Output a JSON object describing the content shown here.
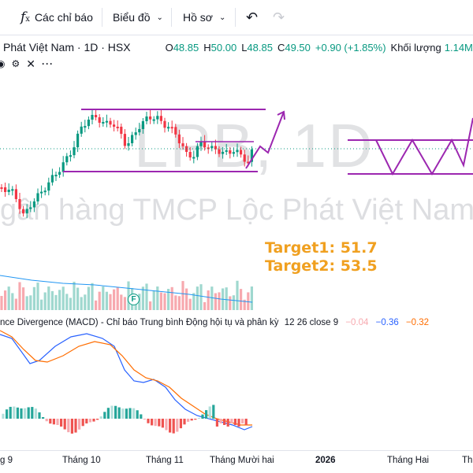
{
  "toolbar": {
    "indicators_icon": "fx-icon",
    "indicators_label": "Các chỉ báo",
    "chart_type_label": "Biểu đồ",
    "profile_label": "Hồ sơ",
    "undo_icon": "undo-icon",
    "redo_icon": "redo-icon"
  },
  "legend": {
    "symbol": "Phát Việt Nam · 1D · HSX",
    "open_label": "O",
    "open": "48.85",
    "high_label": "H",
    "high": "50.00",
    "low_label": "L",
    "low": "48.85",
    "close_label": "C",
    "close": "49.50",
    "change": "+0.90 (+1.85%)",
    "volume_label": "Khối lượng",
    "volume": "1.14M"
  },
  "watermark": {
    "ticker": "LPB, 1D",
    "company": "gân hàng TMCP Lộc Phát Việt Nam"
  },
  "annotations": {
    "target1": "Target1: 51.7",
    "target2": "Target2: 53.5"
  },
  "events": {
    "badge": "F"
  },
  "macd_legend": {
    "name": "nce Divergence (MACD) - Chỉ báo Trung bình Động hội tụ và phân kỳ",
    "params": "12 26 close 9",
    "hist": "−0.04",
    "macd": "−0.36",
    "signal": "−0.32"
  },
  "xaxis": [
    "g 9",
    "Tháng 10",
    "Tháng 11",
    "Tháng Mười hai",
    "2026",
    "Tháng Hai",
    "Th"
  ],
  "colors": {
    "up": "#089981",
    "down": "#f23645",
    "channel": "#9c27b0",
    "target": "#f0a020",
    "macd": "#2962ff",
    "signal": "#ff6d00",
    "vol_up": "#9fd8cf",
    "vol_down": "#f7a9af"
  }
}
